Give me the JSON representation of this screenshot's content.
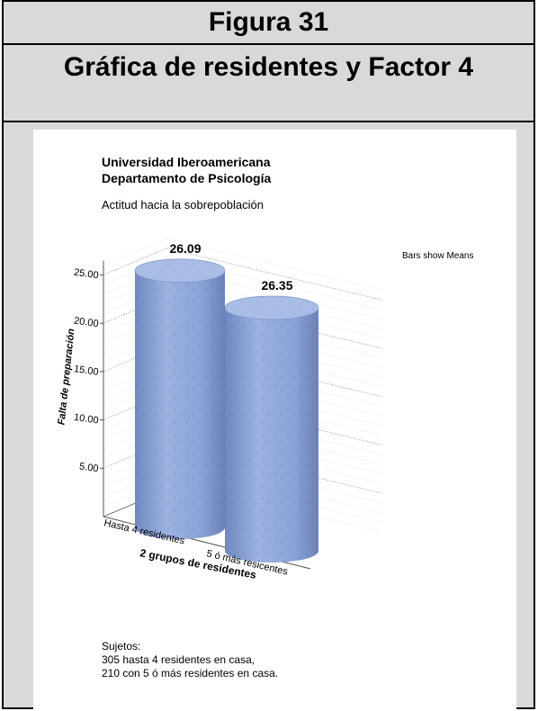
{
  "figure": {
    "number_label": "Figura 31",
    "caption": "Gráfica de residentes y Factor 4"
  },
  "report": {
    "institution": "Universidad Iberoamericana",
    "department": "Departamento de Psicología",
    "subtitle": "Actitud hacia la sobrepoblación",
    "bars_note": "Bars show Means",
    "footnote_title": "Sujetos:",
    "footnote_line1": "305 hasta 4 residentes en casa,",
    "footnote_line2": "210 con 5 ó más residentes en casa."
  },
  "colors": {
    "bar_body": "#8ea6d8",
    "bar_top": "#a9bde6",
    "axis": "#555555",
    "grid": "#888888"
  },
  "chart_data": {
    "type": "bar",
    "style": "3d-cylinder",
    "categories": [
      "Hasta 4 residentes",
      "5 ó más resicentes"
    ],
    "values": [
      26.09,
      26.35
    ],
    "data_labels": [
      "26.09",
      "26.35"
    ],
    "xlabel": "2 grupos de residentes",
    "ylabel": "Falta de preparación",
    "yticks": [
      "5.00",
      "10.00",
      "15.00",
      "20.00",
      "25.00"
    ],
    "ytick_values": [
      5,
      10,
      15,
      20,
      25
    ],
    "ylim": [
      0,
      27
    ],
    "grid": true
  }
}
